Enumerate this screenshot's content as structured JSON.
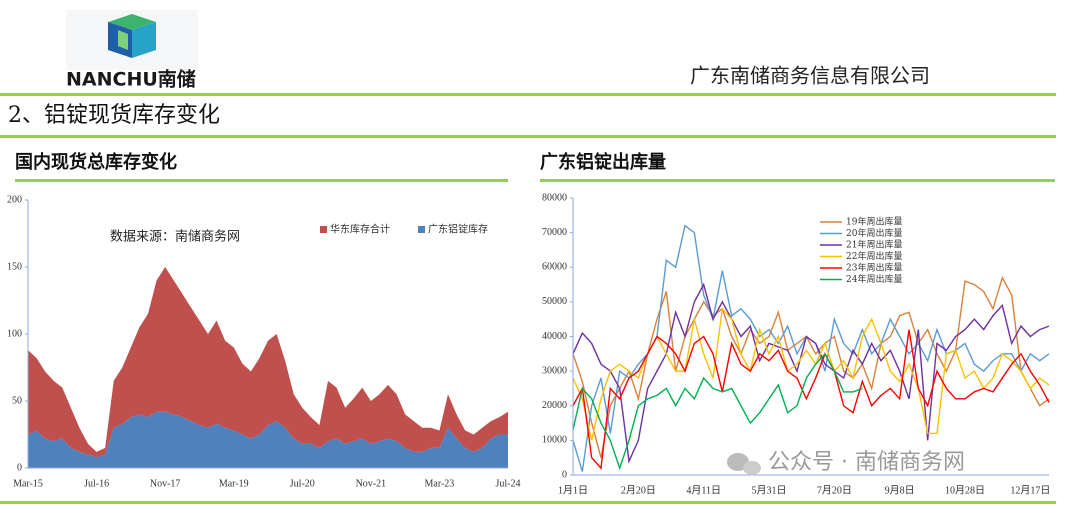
{
  "header": {
    "logo_text": "NANCHU南储",
    "company": "广东南储商务信息有限公司"
  },
  "section_title": "2、铝锭现货库存变化",
  "watermark": "公众号 · 南储商务网",
  "chart_data": [
    {
      "type": "area",
      "title": "国内现货总库存变化",
      "annotation": "数据来源：南储商务网",
      "categories": [
        "Mar-15",
        null,
        null,
        null,
        null,
        null,
        null,
        null,
        "Jul-16",
        null,
        null,
        null,
        null,
        null,
        null,
        null,
        "Nov-17",
        null,
        null,
        null,
        null,
        null,
        null,
        null,
        "Mar-19",
        null,
        null,
        null,
        null,
        null,
        null,
        null,
        "Jul-20",
        null,
        null,
        null,
        null,
        null,
        null,
        null,
        "Nov-21",
        null,
        null,
        null,
        null,
        null,
        null,
        null,
        "Mar-23",
        null,
        null,
        null,
        null,
        null,
        null,
        null,
        "Jul-24"
      ],
      "series": [
        {
          "name": "华东库存合计",
          "color": "#c0504d",
          "values": [
            63,
            54,
            50,
            45,
            38,
            30,
            18,
            8,
            4,
            5,
            35,
            42,
            52,
            65,
            77,
            98,
            108,
            100,
            92,
            85,
            78,
            70,
            77,
            65,
            62,
            53,
            50,
            57,
            63,
            65,
            50,
            33,
            27,
            20,
            17,
            45,
            38,
            27,
            32,
            38,
            32,
            35,
            40,
            35,
            25,
            23,
            18,
            15,
            13,
            25,
            18,
            13,
            13,
            15,
            13,
            13,
            17
          ]
        },
        {
          "name": "广东铝锭库存",
          "color": "#4f81bd",
          "values": [
            25,
            28,
            22,
            20,
            22,
            15,
            12,
            10,
            8,
            10,
            30,
            33,
            38,
            40,
            38,
            42,
            42,
            40,
            38,
            35,
            32,
            30,
            33,
            30,
            28,
            25,
            22,
            25,
            32,
            35,
            30,
            22,
            18,
            18,
            15,
            20,
            22,
            18,
            20,
            22,
            18,
            20,
            22,
            20,
            15,
            12,
            12,
            15,
            15,
            30,
            22,
            15,
            12,
            15,
            22,
            25,
            25
          ]
        }
      ],
      "stacked": true,
      "ylim": [
        0,
        200
      ],
      "yticks": [
        0,
        50,
        100,
        150,
        200
      ],
      "legend": "top-right"
    },
    {
      "type": "line",
      "title": "广东铝锭出库量",
      "categories": [
        "1月1日",
        null,
        null,
        null,
        null,
        null,
        null,
        "2月20日",
        null,
        null,
        null,
        null,
        null,
        null,
        "4月11日",
        null,
        null,
        null,
        null,
        null,
        null,
        "5月31日",
        null,
        null,
        null,
        null,
        null,
        null,
        "7月20日",
        null,
        null,
        null,
        null,
        null,
        null,
        "9月8日",
        null,
        null,
        null,
        null,
        null,
        null,
        "10月28日",
        null,
        null,
        null,
        null,
        null,
        null,
        "12月17日",
        null,
        null
      ],
      "series": [
        {
          "name": "19年周出库量",
          "color": "#d9823b",
          "values": [
            35000,
            27000,
            15000,
            5000,
            20000,
            25000,
            30000,
            22000,
            35000,
            45000,
            53000,
            30000,
            40000,
            45000,
            50000,
            46000,
            48000,
            40000,
            35000,
            42000,
            38000,
            40000,
            47000,
            36000,
            38000,
            40000,
            35000,
            38000,
            40000,
            30000,
            28000,
            32000,
            25000,
            38000,
            40000,
            46000,
            47000,
            38000,
            42000,
            35000,
            30000,
            36000,
            56000,
            55000,
            53000,
            48000,
            57000,
            52000,
            30000,
            25000,
            20000,
            22000
          ]
        },
        {
          "name": "20年周出库量",
          "color": "#5b9bd5",
          "values": [
            10000,
            1000,
            20000,
            28000,
            12000,
            30000,
            28000,
            32000,
            35000,
            40000,
            62000,
            60000,
            72000,
            70000,
            52000,
            45000,
            59000,
            46000,
            48000,
            45000,
            40000,
            42000,
            38000,
            43000,
            35000,
            40000,
            38000,
            30000,
            45000,
            38000,
            35000,
            42000,
            35000,
            38000,
            45000,
            40000,
            35000,
            38000,
            33000,
            42000,
            35000,
            36000,
            38000,
            32000,
            30000,
            33000,
            35000,
            35000,
            30000,
            35000,
            33000,
            35000
          ]
        },
        {
          "name": "21年周出库量",
          "color": "#7030a0",
          "values": [
            35000,
            41000,
            38000,
            32000,
            30000,
            25000,
            4000,
            10000,
            25000,
            30000,
            35000,
            47000,
            40000,
            50000,
            55000,
            45000,
            50000,
            45000,
            40000,
            43000,
            33000,
            38000,
            37000,
            36000,
            30000,
            40000,
            38000,
            32000,
            30000,
            28000,
            36000,
            32000,
            38000,
            33000,
            36000,
            30000,
            22000,
            42000,
            10000,
            38000,
            36000,
            40000,
            42000,
            45000,
            42000,
            46000,
            49000,
            38000,
            43000,
            40000,
            42000,
            43000
          ]
        },
        {
          "name": "22年周出库量",
          "color": "#ffc000",
          "values": [
            28000,
            22000,
            10000,
            22000,
            30000,
            32000,
            30000,
            28000,
            35000,
            40000,
            35000,
            30000,
            30000,
            45000,
            35000,
            28000,
            48000,
            45000,
            35000,
            30000,
            42000,
            35000,
            40000,
            30000,
            32000,
            36000,
            32000,
            38000,
            30000,
            33000,
            28000,
            40000,
            45000,
            38000,
            30000,
            27000,
            32000,
            25000,
            12000,
            12000,
            35000,
            36000,
            28000,
            30000,
            25000,
            28000,
            35000,
            33000,
            30000,
            25000,
            28000,
            26000
          ]
        },
        {
          "name": "23年周出库量",
          "color": "#ff0000",
          "values": [
            20000,
            25000,
            5000,
            2000,
            25000,
            22000,
            28000,
            30000,
            35000,
            40000,
            38000,
            35000,
            30000,
            38000,
            40000,
            35000,
            24000,
            38000,
            32000,
            30000,
            35000,
            33000,
            36000,
            30000,
            28000,
            22000,
            28000,
            35000,
            30000,
            20000,
            18000,
            27000,
            20000,
            23000,
            25000,
            22000,
            42000,
            25000,
            20000,
            30000,
            25000,
            22000,
            22000,
            24000,
            25000,
            24000,
            28000,
            32000,
            35000,
            30000,
            26000,
            21000
          ]
        },
        {
          "name": "24年周出库量",
          "color": "#00b050",
          "values": [
            13000,
            25000,
            22000,
            15000,
            10000,
            2000,
            10000,
            20000,
            22000,
            23000,
            25000,
            20000,
            25000,
            22000,
            28000,
            25000,
            24000,
            25000,
            20000,
            15000,
            18000,
            22000,
            26000,
            18000,
            20000,
            28000,
            32000,
            35000,
            30000,
            24000,
            24000,
            25000,
            null,
            null,
            null,
            null,
            null,
            null,
            null,
            null,
            null,
            null,
            null,
            null,
            null,
            null,
            null,
            null,
            null,
            null,
            null,
            null
          ]
        }
      ],
      "ylim": [
        0,
        80000
      ],
      "yticks": [
        0,
        10000,
        20000,
        30000,
        40000,
        50000,
        60000,
        70000,
        80000
      ],
      "legend": "top"
    }
  ]
}
